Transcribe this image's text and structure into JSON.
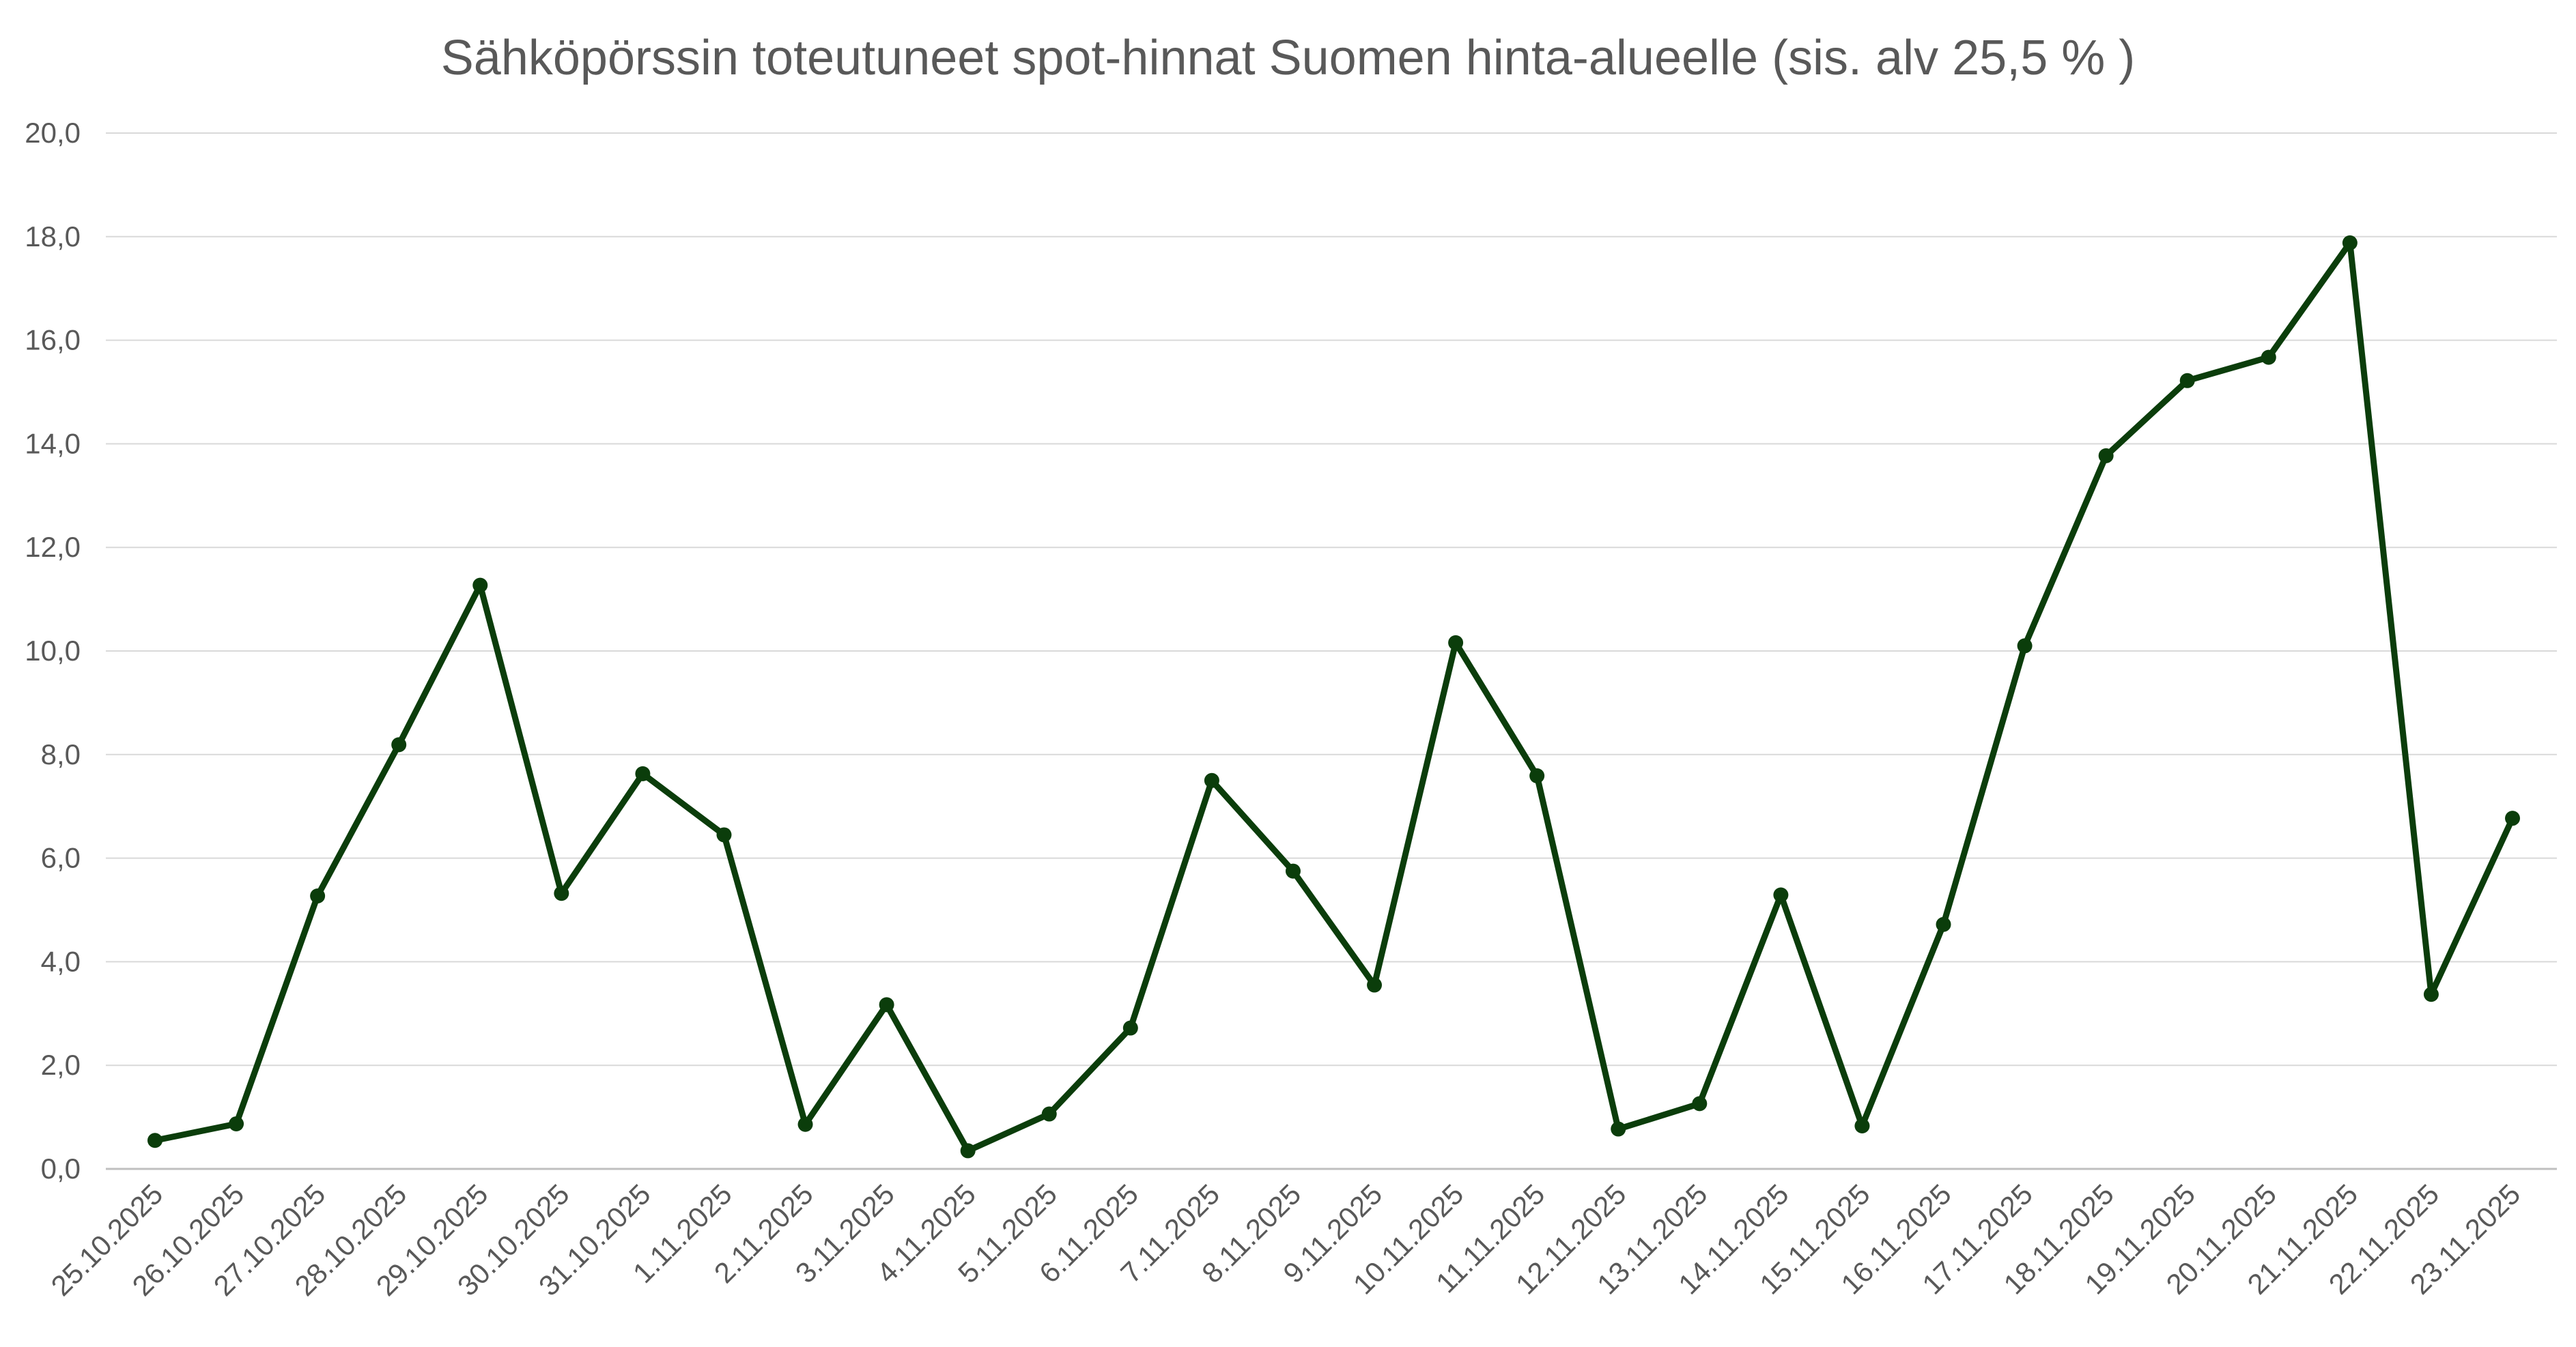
{
  "chart_data": {
    "type": "line",
    "title": "Sähköpörssin toteutuneet spot-hinnat Suomen hinta-alueelle (sis. alv 25,5 % )",
    "xlabel": "",
    "ylabel": "",
    "ylim": [
      0,
      20
    ],
    "y_ticks": [
      "0,0",
      "2,0",
      "4,0",
      "6,0",
      "8,0",
      "10,0",
      "12,0",
      "14,0",
      "16,0",
      "18,0",
      "20,0"
    ],
    "grid": true,
    "legend": "none",
    "line_color": "#0b3d0b",
    "categories": [
      "25.10.2025",
      "26.10.2025",
      "27.10.2025",
      "28.10.2025",
      "29.10.2025",
      "30.10.2025",
      "31.10.2025",
      "1.11.2025",
      "2.11.2025",
      "3.11.2025",
      "4.11.2025",
      "5.11.2025",
      "6.11.2025",
      "7.11.2025",
      "8.11.2025",
      "9.11.2025",
      "10.11.2025",
      "11.11.2025",
      "12.11.2025",
      "13.11.2025",
      "14.11.2025",
      "15.11.2025",
      "16.11.2025",
      "17.11.2025",
      "18.11.2025",
      "19.11.2025",
      "20.11.2025",
      "21.11.2025",
      "22.11.2025",
      "23.11.2025"
    ],
    "values": [
      0.55,
      0.87,
      5.27,
      8.19,
      11.27,
      5.32,
      7.63,
      6.45,
      0.86,
      3.17,
      0.35,
      1.06,
      2.72,
      7.5,
      5.75,
      3.55,
      10.16,
      7.59,
      0.77,
      1.26,
      5.29,
      0.83,
      4.72,
      10.1,
      13.77,
      15.22,
      15.67,
      17.88,
      3.37,
      6.77
    ]
  }
}
